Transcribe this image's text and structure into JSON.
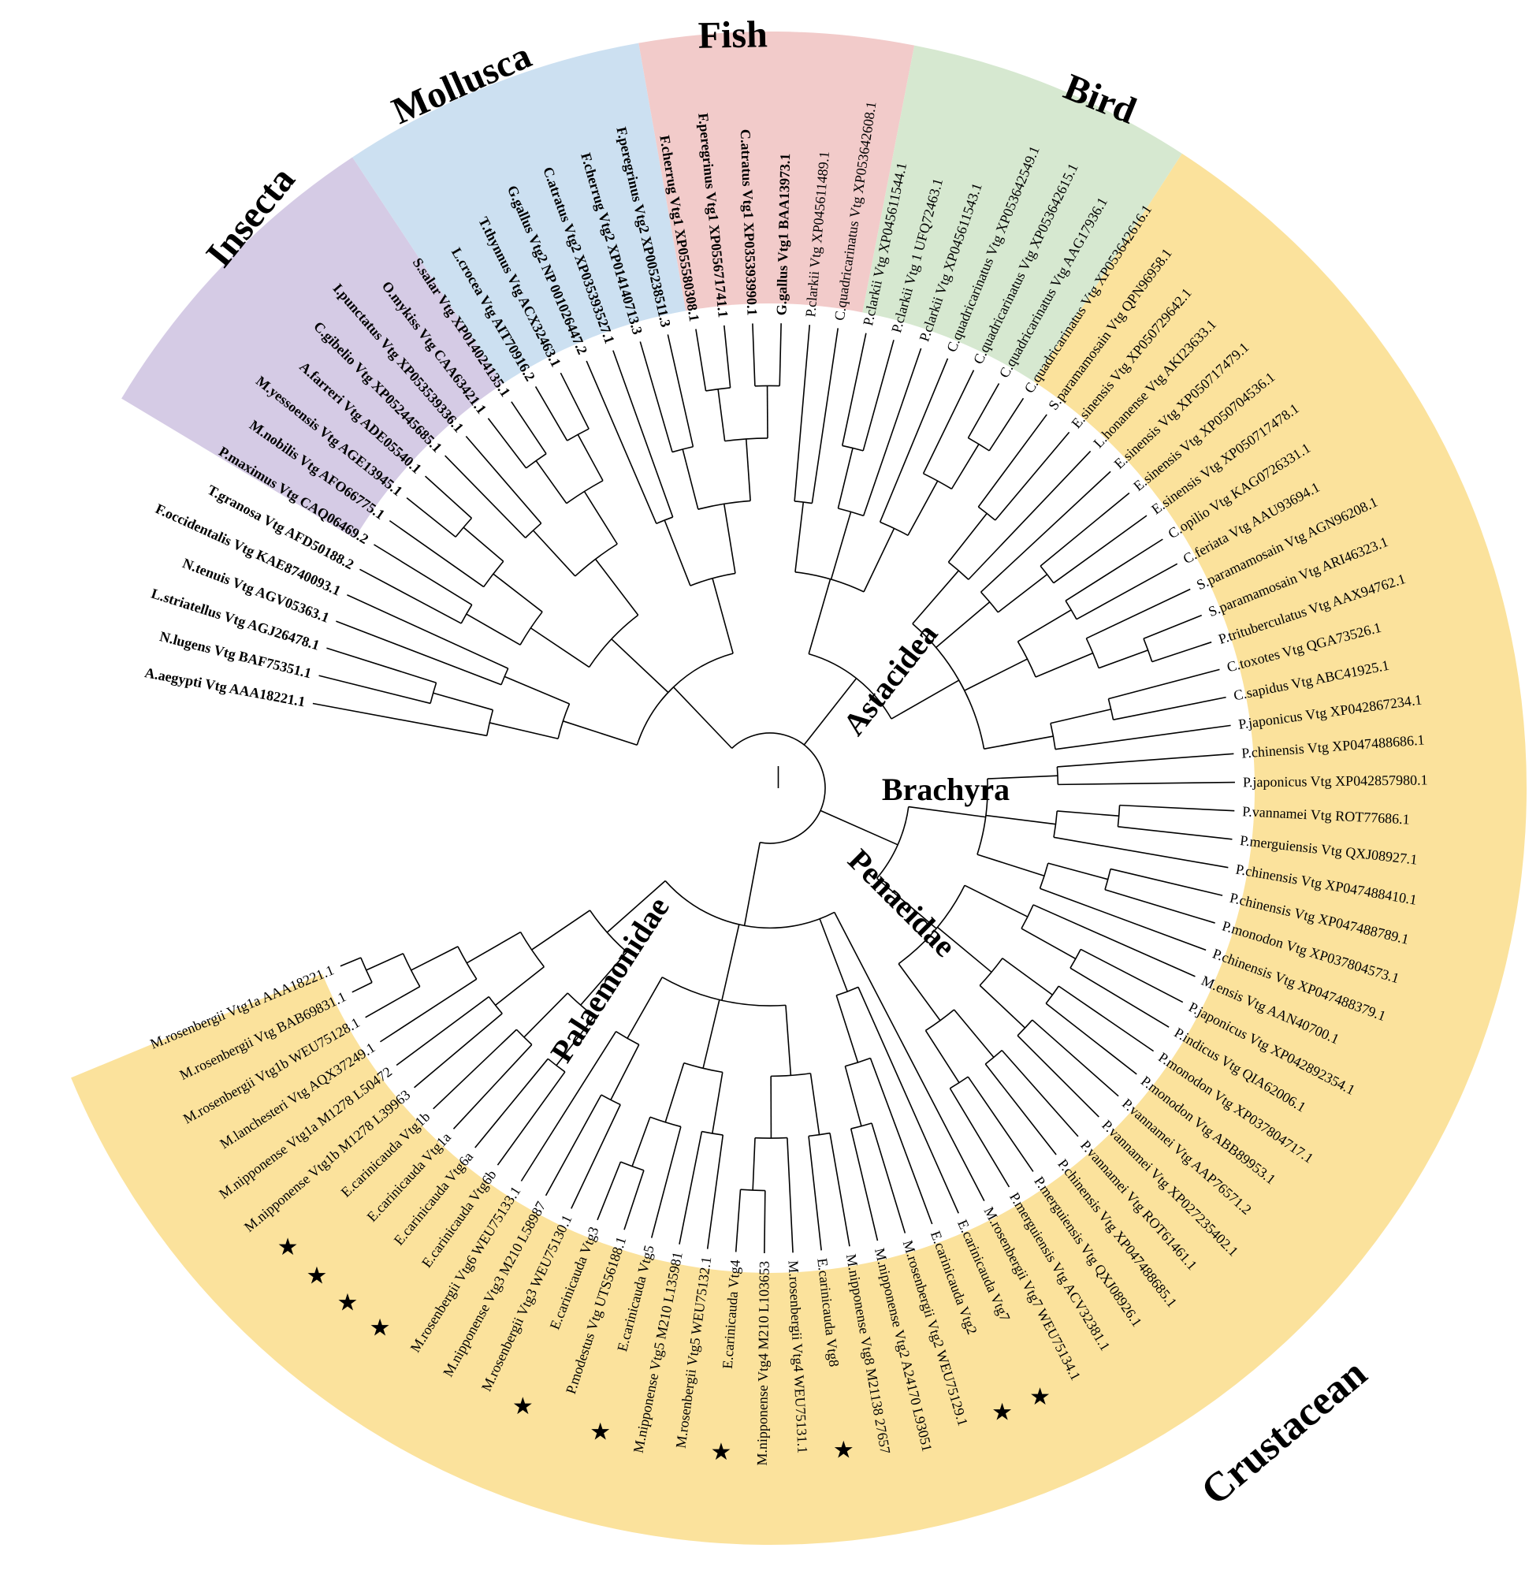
{
  "colors": {
    "sector_insecta": "#d5cbe5",
    "sector_mollusca": "#cce0f1",
    "sector_fish": "#f2cbca",
    "sector_bird": "#d6e8d0",
    "sector_crustacean": "#fbe29c",
    "clade_astacidea": "#9b4164",
    "clade_brachyra": "#3b88c6",
    "clade_penaeidae": "#5fa046",
    "clade_palaemonidae": "#5d3fa0",
    "outgroup": "#000000",
    "branch_default": "#000000"
  },
  "groups": {
    "insecta": "Insecta",
    "mollusca": "Mollusca",
    "fish": "Fish",
    "bird": "Bird",
    "crustacean": "Crustacean"
  },
  "subclades": {
    "astacidea": "Astacidea",
    "brachyra": "Brachyra",
    "penaeidae": "Penaeidae",
    "palaemonidae": "Palaemonidae"
  },
  "star_symbol": "★",
  "taxa": [
    {
      "label": "A.aegypti Vtg AAA18221.1",
      "clade": "outgroup"
    },
    {
      "label": "N.lugens Vtg BAF75351.1",
      "clade": "outgroup"
    },
    {
      "label": "L.striatellus Vtg AGJ26478.1",
      "clade": "outgroup"
    },
    {
      "label": "N.tenuis Vtg AGV05363.1",
      "clade": "outgroup"
    },
    {
      "label": "F.occidentalis Vtg KAE8740093.1",
      "clade": "outgroup"
    },
    {
      "label": "T.granosa Vtg AFD50188.2",
      "clade": "outgroup"
    },
    {
      "label": "P.maximus Vtg CAQ06469.2",
      "clade": "outgroup"
    },
    {
      "label": "M.nobilis Vtg AFO66775.1",
      "clade": "outgroup"
    },
    {
      "label": "M.yessoensis Vtg AGE13945.1",
      "clade": "outgroup"
    },
    {
      "label": "A.farreri Vtg ADE05540.1",
      "clade": "outgroup"
    },
    {
      "label": "C.gibelio Vtg XP052445685.1",
      "clade": "outgroup"
    },
    {
      "label": "I.punctatus Vtg XP053539336.1",
      "clade": "outgroup"
    },
    {
      "label": "O.mykiss Vtg CAA63421.1",
      "clade": "outgroup"
    },
    {
      "label": "S.salar Vtg XP014024135.1",
      "clade": "outgroup"
    },
    {
      "label": "L.crocea Vtg AIT70916.2",
      "clade": "outgroup"
    },
    {
      "label": "T.thynnus Vtg ACX32463.1",
      "clade": "outgroup"
    },
    {
      "label": "G.gallus Vtg2 NP 001026447.2",
      "clade": "outgroup"
    },
    {
      "label": "C.atratus Vtg2 XP035393527.1",
      "clade": "outgroup"
    },
    {
      "label": "F.cherrug Vtg2 XP014140713.3",
      "clade": "outgroup"
    },
    {
      "label": "F.peregrinus Vtg2 XP005238511.3",
      "clade": "outgroup"
    },
    {
      "label": "F.cherrug Vtg1 XP055580308.1",
      "clade": "outgroup"
    },
    {
      "label": "F.peregrinus Vtg1 XP055671741.1",
      "clade": "outgroup"
    },
    {
      "label": "C.atratus Vtg1 XP035393990.1",
      "clade": "outgroup"
    },
    {
      "label": "G.gallus Vtg1 BAA13973.1",
      "clade": "outgroup"
    },
    {
      "label": "P.clarkii Vtg XP045611489.1",
      "clade": "astacidea"
    },
    {
      "label": "C.quadricarinatus Vtg XP053642608.1",
      "clade": "astacidea"
    },
    {
      "label": "P.clarkii Vtg XP045611544.1",
      "clade": "astacidea"
    },
    {
      "label": "P.clarkii Vtg 1 UFQ72463.1",
      "clade": "astacidea"
    },
    {
      "label": "P.clarkii Vtg XP045611543.1",
      "clade": "astacidea"
    },
    {
      "label": "C.quadricarinatus Vtg XP053642549.1",
      "clade": "astacidea"
    },
    {
      "label": "C.quadricarinatus Vtg XP053642615.1",
      "clade": "astacidea"
    },
    {
      "label": "C.quadricarinatus Vtg AAG17936.1",
      "clade": "astacidea"
    },
    {
      "label": "C.quadricarinatus Vtg XP053642616.1",
      "clade": "astacidea"
    },
    {
      "label": "S.paramamosain Vtg QPN96958.1",
      "clade": "brachyra"
    },
    {
      "label": "E.sinensis Vtg XP050729642.1",
      "clade": "brachyra"
    },
    {
      "label": "L.honanense Vtg AKI23633.1",
      "clade": "brachyra"
    },
    {
      "label": "E.sinensis Vtg XP050717479.1",
      "clade": "brachyra"
    },
    {
      "label": "E.sinensis Vtg XP050704536.1",
      "clade": "brachyra"
    },
    {
      "label": "E.sinensis Vtg XP050717478.1",
      "clade": "brachyra"
    },
    {
      "label": "C.opilio Vtg KAG0726331.1",
      "clade": "brachyra"
    },
    {
      "label": "C.feriata Vtg AAU93694.1",
      "clade": "brachyra"
    },
    {
      "label": "S.paramamosain Vtg AGN96208.1",
      "clade": "brachyra"
    },
    {
      "label": "S.paramamosain Vtg ARI46323.1",
      "clade": "brachyra"
    },
    {
      "label": "P.trituberculatus Vtg AAX94762.1",
      "clade": "brachyra"
    },
    {
      "label": "C.toxotes Vtg QGA73526.1",
      "clade": "brachyra"
    },
    {
      "label": "C.sapidus Vtg ABC41925.1",
      "clade": "brachyra"
    },
    {
      "label": "P.japonicus Vtg XP042867234.1",
      "clade": "penaeidae"
    },
    {
      "label": "P.chinensis Vtg XP047488686.1",
      "clade": "penaeidae"
    },
    {
      "label": "P.japonicus Vtg XP042857980.1",
      "clade": "penaeidae"
    },
    {
      "label": "P.vannamei Vtg ROT77686.1",
      "clade": "penaeidae"
    },
    {
      "label": "P.merguiensis Vtg QXJ08927.1",
      "clade": "penaeidae"
    },
    {
      "label": "P.chinensis Vtg XP047488410.1",
      "clade": "penaeidae"
    },
    {
      "label": "P.chinensis Vtg XP047488789.1",
      "clade": "penaeidae"
    },
    {
      "label": "P.monodon Vtg XP037804573.1",
      "clade": "penaeidae"
    },
    {
      "label": "P.chinensis Vtg XP047488379.1",
      "clade": "penaeidae"
    },
    {
      "label": "M.ensis Vtg AAN40700.1",
      "clade": "penaeidae"
    },
    {
      "label": "P.japonicus Vtg XP042892354.1",
      "clade": "penaeidae"
    },
    {
      "label": "P.indicus Vtg QIA62006.1",
      "clade": "penaeidae"
    },
    {
      "label": "P.monodon Vtg XP037804717.1",
      "clade": "penaeidae"
    },
    {
      "label": "P.monodon Vtg ABB89953.1",
      "clade": "penaeidae"
    },
    {
      "label": "P.vannamei Vtg AAP76571.2",
      "clade": "penaeidae"
    },
    {
      "label": "P.vannamei Vtg XP027235402.1",
      "clade": "penaeidae"
    },
    {
      "label": "P.vannamei Vtg ROT61461.1",
      "clade": "penaeidae"
    },
    {
      "label": "P.chinensis Vtg XP047488685.1",
      "clade": "penaeidae"
    },
    {
      "label": "P.merguiensis Vtg QXJ08926.1",
      "clade": "penaeidae"
    },
    {
      "label": "P.merguiensis Vtg ACV32381.1",
      "clade": "penaeidae"
    },
    {
      "label": "M.rosenbergii Vtg7 WEU75134.1",
      "clade": "palaemonidae"
    },
    {
      "label": "E.carinicauda Vtg7",
      "clade": "palaemonidae",
      "star": true
    },
    {
      "label": "E.carinicauda Vtg2",
      "clade": "palaemonidae",
      "star": true
    },
    {
      "label": "M.rosenbergii Vtg2 WEU75129.1",
      "clade": "palaemonidae"
    },
    {
      "label": "M.nipponense Vtg2 A24170 L93051",
      "clade": "palaemonidae"
    },
    {
      "label": "M.nipponense Vtg8 M21138 27657",
      "clade": "palaemonidae"
    },
    {
      "label": "E.carinicauda Vtg8",
      "clade": "palaemonidae",
      "star": true
    },
    {
      "label": "M.rosenbergii Vtg4 WEU75131.1",
      "clade": "palaemonidae"
    },
    {
      "label": "M.nipponense Vtg4 M210 L103653",
      "clade": "palaemonidae"
    },
    {
      "label": "E.carinicauda Vtg4",
      "clade": "palaemonidae",
      "star": true
    },
    {
      "label": "M.rosenbergii Vtg5 WEU75132.1",
      "clade": "palaemonidae"
    },
    {
      "label": "M.nipponense Vtg5 M210 L135981",
      "clade": "palaemonidae"
    },
    {
      "label": "E.carinicauda Vtg5",
      "clade": "palaemonidae",
      "star": true
    },
    {
      "label": "P.modestus Vtg UTS56188.1",
      "clade": "palaemonidae"
    },
    {
      "label": "E.carinicauda Vtg3",
      "clade": "palaemonidae",
      "star": true
    },
    {
      "label": "M.rosenbergii Vtg3 WEU75130.1",
      "clade": "palaemonidae"
    },
    {
      "label": "M.nipponense Vtg3 M210 L58987",
      "clade": "palaemonidae"
    },
    {
      "label": "M.rosenbergii Vtg6 WEU75133.1",
      "clade": "palaemonidae"
    },
    {
      "label": "E.carinicauda Vtg6b",
      "clade": "palaemonidae",
      "star": true
    },
    {
      "label": "E.carinicauda Vtg6a",
      "clade": "palaemonidae",
      "star": true
    },
    {
      "label": "E.carinicauda Vtg1a",
      "clade": "palaemonidae",
      "star": true
    },
    {
      "label": "E.carinicauda Vtg1b",
      "clade": "palaemonidae",
      "star": true
    },
    {
      "label": "M.nipponense Vtg1b M1278 L39963",
      "clade": "palaemonidae"
    },
    {
      "label": "M.nipponense Vtg1a M1278 L50472",
      "clade": "palaemonidae"
    },
    {
      "label": "M.lanchesteri Vtg AQX37249.1",
      "clade": "palaemonidae"
    },
    {
      "label": "M.rosenbergii Vtg1b WEU75128.1",
      "clade": "palaemonidae"
    },
    {
      "label": "M.rosenbergii Vtg BAB69831.1",
      "clade": "palaemonidae"
    },
    {
      "label": "M.rosenbergii Vtg1a AAA18221.1",
      "clade": "palaemonidae"
    }
  ],
  "tree": {
    "children": [
      {
        "color": "outgroup",
        "children": [
          {
            "children": [
              {
                "children": [
                  0,
                  [
                    1,
                    2
                  ]
                ]
              },
              {
                "children": [
                  3,
                  4
                ]
              }
            ]
          },
          {
            "children": [
              {
                "children": [
                  {
                    "children": [
                      5,
                      6
                    ]
                  },
                  {
                    "children": [
                      7,
                      [
                        8,
                        9
                      ]
                    ]
                  }
                ]
              },
              {
                "children": [
                  {
                    "children": [
                      10,
                      11
                    ]
                  },
                  {
                    "children": [
                      [
                        12,
                        13
                      ],
                      [
                        14,
                        15
                      ]
                    ]
                  }
                ]
              }
            ]
          },
          {
            "children": [
              {
                "children": [
                  16,
                  17
                ]
              },
              {
                "children": [
                  [
                    18,
                    19
                  ],
                  [
                    [
                      20,
                      21
                    ],
                    [
                      22,
                      23
                    ]
                  ]
                ]
              }
            ]
          }
        ]
      },
      {
        "children": [
          {
            "color": "astacidea",
            "children": [
              {
                "children": [
                  24,
                  25
                ]
              },
              {
                "children": [
                  [
                    26,
                    27
                  ],
                  28
                ]
              },
              {
                "children": [
                  29,
                  [
                    30,
                    [
                      31,
                      32
                    ]
                  ]
                ]
              }
            ]
          },
          {
            "color": "brachyra",
            "children": [
              {
                "children": [
                  [
                    33,
                    34
                  ],
                  35
                ]
              },
              {
                "children": [
                  36,
                  [
                    37,
                    38
                  ]
                ]
              },
              {
                "children": [
                  [
                    39,
                    40
                  ],
                  [
                    41,
                    [
                      42,
                      43
                    ]
                  ]
                ]
              },
              {
                "children": [
                  [
                    44,
                    45
                  ],
                  46
                ]
              }
            ]
          }
        ]
      },
      {
        "color": "penaeidae",
        "children": [
          {
            "children": [
              {
                "children": [
                  47,
                  48
                ]
              },
              {
                "children": [
                  [
                    49,
                    50
                  ],
                  51
                ]
              },
              {
                "children": [
                  [
                    52,
                    53
                  ],
                  54
                ]
              }
            ]
          },
          {
            "children": [
              {
                "children": [
                  55,
                  [
                    56,
                    57
                  ]
                ]
              },
              {
                "children": [
                  [
                    58,
                    59
                  ],
                  [
                    60,
                    61
                  ]
                ]
              },
              {
                "children": [
                  [
                    62,
                    63
                  ],
                  [
                    64,
                    65
                  ]
                ]
              }
            ]
          }
        ]
      },
      {
        "color": "palaemonidae",
        "children": [
          66,
          {
            "children": [
              67,
              [
                68,
                [
                  69,
                  70
                ]
              ]
            ]
          },
          {
            "children": [
              {
                "children": [
                  [
                    71,
                    72
                  ],
                  [
                    73,
                    [
                      74,
                      75
                    ]
                  ]
                ]
              },
              {
                "children": [
                  [
                    76,
                    77
                  ],
                  [
                    78,
                    [
                      79,
                      80
                    ]
                  ]
                ]
              },
              {
                "children": [
                  [
                    81,
                    82
                  ],
                  83
                ]
              }
            ]
          },
          {
            "children": [
              {
                "children": [
                  [
                    84,
                    85
                  ],
                  [
                    86,
                    87
                  ]
                ]
              },
              {
                "children": [
                  [
                    88,
                    89
                  ],
                  [
                    90,
                    [
                      91,
                      [
                        92,
                        93
                      ]
                    ]
                  ]
                ]
              }
            ]
          }
        ]
      }
    ]
  }
}
